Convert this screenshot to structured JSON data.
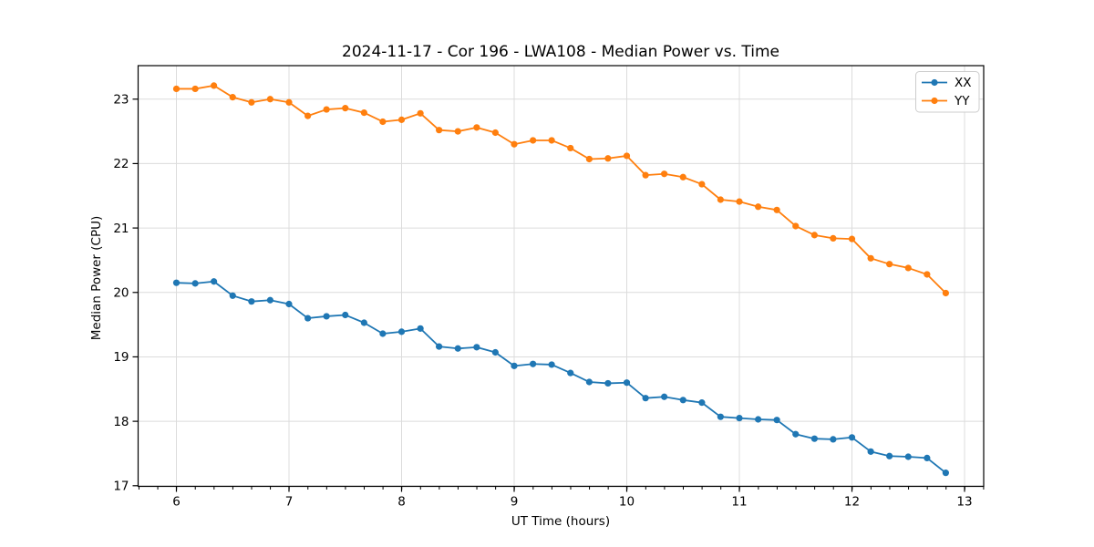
{
  "chart_data": {
    "type": "line",
    "title": "2024-11-17 - Cor 196 - LWA108 - Median Power vs. Time",
    "xlabel": "UT Time (hours)",
    "ylabel": "Median Power (CPU)",
    "grid": true,
    "legend_position": "upper right",
    "marker": "circle",
    "xlim": [
      5.66,
      13.17
    ],
    "ylim": [
      16.99,
      23.52
    ],
    "xticks": [
      6,
      7,
      8,
      9,
      10,
      11,
      12,
      13
    ],
    "yticks": [
      17,
      18,
      19,
      20,
      21,
      22,
      23
    ],
    "minor_xtick_step": 0.1667,
    "x": [
      6.0,
      6.167,
      6.333,
      6.5,
      6.667,
      6.833,
      7.0,
      7.167,
      7.333,
      7.5,
      7.667,
      7.833,
      8.0,
      8.167,
      8.333,
      8.5,
      8.667,
      8.833,
      9.0,
      9.167,
      9.333,
      9.5,
      9.667,
      9.833,
      10.0,
      10.167,
      10.333,
      10.5,
      10.667,
      10.833,
      11.0,
      11.167,
      11.333,
      11.5,
      11.667,
      11.833,
      12.0,
      12.167,
      12.333,
      12.5,
      12.667,
      12.833
    ],
    "series": [
      {
        "name": "XX",
        "color": "#1f77b4",
        "values": [
          20.15,
          20.14,
          20.17,
          19.95,
          19.86,
          19.88,
          19.82,
          19.6,
          19.63,
          19.65,
          19.53,
          19.36,
          19.39,
          19.44,
          19.16,
          19.13,
          19.15,
          19.07,
          18.86,
          18.89,
          18.88,
          18.75,
          18.61,
          18.59,
          18.6,
          18.36,
          18.38,
          18.33,
          18.29,
          18.07,
          18.05,
          18.03,
          18.02,
          17.8,
          17.73,
          17.72,
          17.75,
          17.53,
          17.46,
          17.45,
          17.43,
          17.2
        ]
      },
      {
        "name": "YY",
        "color": "#ff7f0e",
        "values": [
          23.16,
          23.16,
          23.21,
          23.03,
          22.95,
          23.0,
          22.95,
          22.74,
          22.84,
          22.86,
          22.79,
          22.65,
          22.68,
          22.78,
          22.52,
          22.5,
          22.56,
          22.48,
          22.3,
          22.36,
          22.36,
          22.24,
          22.07,
          22.08,
          22.12,
          21.82,
          21.84,
          21.79,
          21.68,
          21.44,
          21.41,
          21.33,
          21.28,
          21.03,
          20.89,
          20.84,
          20.83,
          20.53,
          20.44,
          20.38,
          20.28,
          19.99
        ]
      }
    ],
    "colors": {
      "grid": "#dcdcdc",
      "spine": "#000000",
      "background": "#ffffff"
    }
  }
}
